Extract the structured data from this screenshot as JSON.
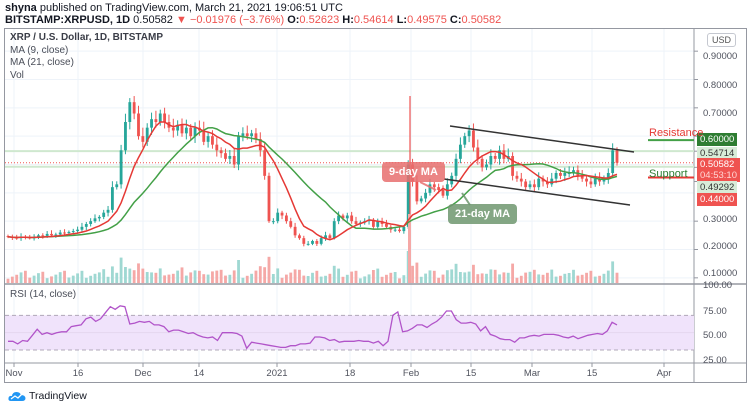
{
  "header": {
    "publisher": "shyna",
    "published_text": "published on TradingView.com, March 21, 2021 19:06:51 UTC",
    "symbol": "BITSTAMP:XRPUSD, 1D",
    "last": "0.50582",
    "change": "−0.01976 (−3.76%)",
    "o_label": "O:",
    "o": "0.52623",
    "h_label": "H:",
    "h": "0.54614",
    "l_label": "L:",
    "l": "0.49575",
    "c_label": "C:",
    "c": "0.50582"
  },
  "legend": {
    "title": "XRP / U.S. Dollar, 1D, BITSTAMP",
    "ma9": "MA (9, close)",
    "ma21": "MA (21, close)",
    "vol": "Vol"
  },
  "rsi_label": "RSI (14, close)",
  "currency_button": "USD",
  "price_axis": [
    "0.90000",
    "0.80000",
    "0.70000",
    "0.30000",
    "0.20000",
    "0.10000"
  ],
  "rsi_axis": [
    "100.00",
    "75.00",
    "50.00",
    "25.00"
  ],
  "price_tags": {
    "resistance": "0.60000",
    "ma_high": "0.54714",
    "last": "0.50582",
    "countdown": "04:53:10",
    "ma_low": "0.49292",
    "support": "0.44000"
  },
  "annotations": {
    "resistance": "Resistance",
    "support": "Support",
    "ma9": "9-day MA",
    "ma21": "21-day MA"
  },
  "time_axis": [
    "Nov",
    "16",
    "Dec",
    "14",
    "2021",
    "18",
    "Feb",
    "15",
    "Mar",
    "15",
    "Apr"
  ],
  "footer": {
    "brand": "TradingView"
  },
  "colors": {
    "up": "#26a69a",
    "down": "#ef5350",
    "ma9": "#e53935",
    "ma21": "#43a047",
    "rsi": "#b154c9",
    "rsi_band": "#f0e3fb",
    "grid": "#eef3f9"
  },
  "chart_data": {
    "type": "candlestick",
    "title": "XRP / U.S. Dollar, 1D, BITSTAMP",
    "ylim": [
      0.05,
      0.95
    ],
    "x_ticks": [
      "Nov",
      "16",
      "Dec",
      "14",
      "2021",
      "18",
      "Feb",
      "15",
      "Mar",
      "15",
      "Apr"
    ],
    "resistance": 0.6,
    "support": 0.44,
    "ma9_last": 0.49292,
    "ma21_last": 0.54714,
    "close_series_approx": [
      0.245,
      0.242,
      0.24,
      0.245,
      0.243,
      0.24,
      0.243,
      0.25,
      0.248,
      0.255,
      0.25,
      0.253,
      0.26,
      0.258,
      0.262,
      0.265,
      0.27,
      0.28,
      0.29,
      0.3,
      0.31,
      0.315,
      0.33,
      0.34,
      0.42,
      0.43,
      0.55,
      0.65,
      0.72,
      0.68,
      0.6,
      0.58,
      0.63,
      0.66,
      0.65,
      0.68,
      0.65,
      0.63,
      0.62,
      0.64,
      0.61,
      0.63,
      0.6,
      0.63,
      0.62,
      0.58,
      0.6,
      0.57,
      0.55,
      0.54,
      0.52,
      0.53,
      0.5,
      0.6,
      0.61,
      0.6,
      0.61,
      0.59,
      0.55,
      0.46,
      0.3,
      0.3,
      0.33,
      0.32,
      0.3,
      0.28,
      0.25,
      0.24,
      0.22,
      0.22,
      0.23,
      0.22,
      0.24,
      0.25,
      0.24,
      0.3,
      0.32,
      0.31,
      0.32,
      0.3,
      0.29,
      0.295,
      0.3,
      0.305,
      0.28,
      0.3,
      0.29,
      0.28,
      0.27,
      0.27,
      0.265,
      0.28,
      0.5,
      0.44,
      0.37,
      0.38,
      0.4,
      0.43,
      0.42,
      0.41,
      0.39,
      0.43,
      0.46,
      0.52,
      0.57,
      0.6,
      0.62,
      0.56,
      0.52,
      0.49,
      0.5,
      0.53,
      0.52,
      0.55,
      0.52,
      0.53,
      0.46,
      0.45,
      0.44,
      0.42,
      0.43,
      0.42,
      0.45,
      0.44,
      0.43,
      0.45,
      0.47,
      0.46,
      0.47,
      0.47,
      0.48,
      0.46,
      0.45,
      0.44,
      0.43,
      0.45,
      0.44,
      0.45,
      0.47,
      0.55,
      0.506
    ],
    "rsi_ylim": [
      15,
      105
    ],
    "rsi_series_approx": [
      40,
      40,
      37,
      41,
      40,
      47,
      54,
      48,
      50,
      48,
      50,
      51,
      51,
      57,
      58,
      59,
      66,
      68,
      63,
      66,
      73,
      80,
      77,
      81,
      80,
      60,
      61,
      63,
      62,
      63,
      59,
      59,
      57,
      51,
      53,
      53,
      51,
      49,
      50,
      47,
      45,
      44,
      45,
      41,
      50,
      50,
      50,
      49,
      46,
      32,
      39,
      38,
      37,
      36,
      35,
      34,
      33,
      33,
      35,
      35,
      37,
      37,
      38,
      45,
      45,
      44,
      41,
      42,
      39,
      40,
      40,
      40,
      41,
      40,
      40,
      38,
      40,
      35,
      40,
      70,
      74,
      51,
      52,
      55,
      59,
      59,
      56,
      60,
      63,
      68,
      75,
      75,
      65,
      61,
      61,
      62,
      60,
      52,
      57,
      48,
      46,
      43,
      42,
      42,
      39,
      44,
      44,
      46,
      47,
      46,
      48,
      48,
      48,
      47,
      45,
      44,
      46,
      43,
      45,
      47,
      48,
      49,
      48,
      52,
      62,
      59
    ],
    "volume_scale_max": 1.0
  }
}
